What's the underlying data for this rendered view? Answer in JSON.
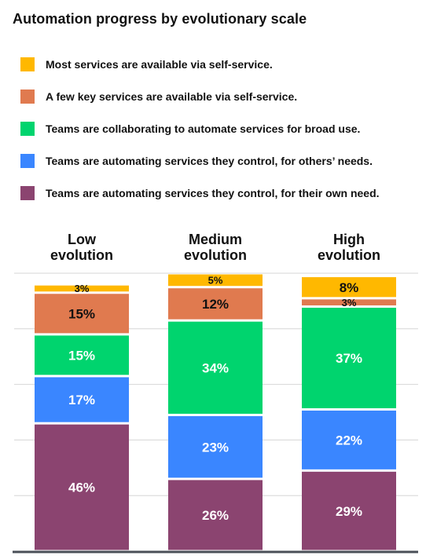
{
  "title": "Automation progress by evolutionary scale",
  "colors": {
    "most_services": "#FFB800",
    "few_key_services": "#E07A4F",
    "collaborating": "#00D46E",
    "others_needs": "#3A86FF",
    "own_need": "#8B4470"
  },
  "legend": [
    {
      "label": "Most services are available via self-service.",
      "color": "#FFB800"
    },
    {
      "label": "A few key services are available via self-service.",
      "color": "#E07A4F"
    },
    {
      "label": "Teams are collaborating to automate services for broad use.",
      "color": "#00D46E"
    },
    {
      "label": "Teams are automating services they control, for others’ needs.",
      "color": "#3A86FF"
    },
    {
      "label": "Teams are automating services they control, for their own need.",
      "color": "#8B4470"
    }
  ],
  "chart_data": {
    "type": "bar",
    "stacked": true,
    "orientation": "vertical",
    "categories": [
      [
        "Low",
        "evolution"
      ],
      [
        "Medium",
        "evolution"
      ],
      [
        "High",
        "evolution"
      ]
    ],
    "series": [
      {
        "name": "Teams are automating services they control, for their own need.",
        "color": "#8B4470",
        "values": [
          46,
          26,
          29
        ]
      },
      {
        "name": "Teams are automating services they control, for others’ needs.",
        "color": "#3A86FF",
        "values": [
          17,
          23,
          22
        ]
      },
      {
        "name": "Teams are collaborating to automate services for broad use.",
        "color": "#00D46E",
        "values": [
          15,
          34,
          37
        ]
      },
      {
        "name": "A few key services are available via self-service.",
        "color": "#E07A4F",
        "values": [
          15,
          12,
          3
        ]
      },
      {
        "name": "Most services are available via self-service.",
        "color": "#FFB800",
        "values": [
          3,
          5,
          8
        ]
      }
    ],
    "value_labels": [
      [
        "46%",
        "17%",
        "15%",
        "15%",
        "3%"
      ],
      [
        "26%",
        "23%",
        "34%",
        "12%",
        "5%"
      ],
      [
        "29%",
        "22%",
        "37%",
        "3%",
        "8%"
      ]
    ],
    "ylim": [
      0,
      100
    ],
    "grid": true,
    "legend_position": "top"
  }
}
